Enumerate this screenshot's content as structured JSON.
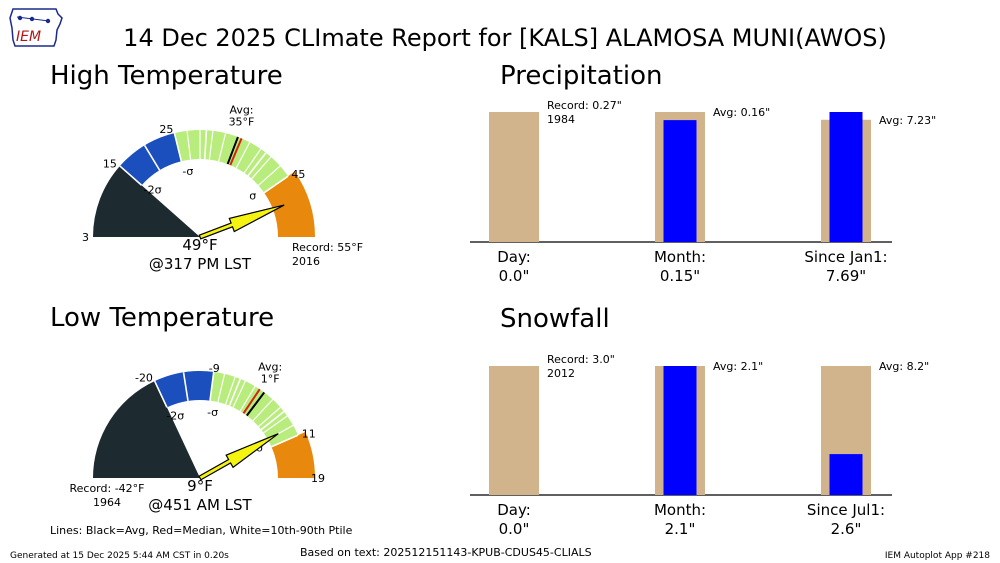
{
  "title": "14 Dec 2025 CLImate Report for [KALS] ALAMOSA MUNI(AWOS)",
  "logo_text": "IEM",
  "colors": {
    "cold": "#1d2a30",
    "blue": "#1b4fbd",
    "green": "#b8ec7c",
    "orange": "#e8890e",
    "arrow": "#f4f410",
    "avg_line": "#000000",
    "median_line": "#d62014",
    "tan": "#d2b48c",
    "obs_blue": "#0000ff"
  },
  "high_gauge": {
    "title": "High Temperature",
    "range": [
      3,
      55
    ],
    "cold_end": 15,
    "blue_end": 25,
    "green_end": 45,
    "avg_value": 35,
    "median_value": 35.6,
    "percentile_values": [
      27,
      29,
      31,
      33,
      37,
      39,
      41,
      43
    ],
    "ticks": [
      3,
      15,
      25,
      45
    ],
    "avg_label": "Avg:",
    "avg_temp_label": "35°F",
    "minus_2sigma": "-2σ",
    "minus_sigma": "-σ",
    "plus_sigma": "σ",
    "sigma_positions": [
      20,
      30,
      40
    ],
    "observed_value": 49,
    "observed_label": "49°F",
    "observed_time": "@317 PM LST",
    "record_label": "Record: 55°F",
    "record_year": "2016",
    "record_side": "high"
  },
  "low_gauge": {
    "title": "Low Temperature",
    "range": [
      -42,
      19
    ],
    "cold_end": -20,
    "blue_end": -9,
    "green_end": 11,
    "avg_value": 1,
    "median_value": 0,
    "percentile_values": [
      -7,
      -5,
      -3,
      -1,
      3,
      5,
      7,
      9
    ],
    "ticks": [
      -20,
      -9,
      11,
      19
    ],
    "avg_label": "Avg:",
    "avg_temp_label": "1°F",
    "minus_2sigma": "-2σ",
    "minus_sigma": "-σ",
    "plus_sigma": "σ",
    "sigma_positions": [
      -14.5,
      -4,
      6
    ],
    "observed_value": 9,
    "observed_label": "9°F",
    "observed_time": "@451 AM LST",
    "record_label": "Record: -42°F",
    "record_year": "1964",
    "record_side": "low"
  },
  "chart_data": [
    {
      "type": "bar",
      "title": "Precipitation",
      "categories": [
        "Day:",
        "Month:",
        "Since Jan1:"
      ],
      "series": [
        {
          "name": "Record / Avg",
          "values": [
            0.27,
            0.16,
            7.23
          ]
        },
        {
          "name": "Observed",
          "values": [
            0.0,
            0.15,
            7.69
          ]
        }
      ],
      "value_labels": [
        "0.0\"",
        "0.15\"",
        "7.69\""
      ],
      "annotations": [
        {
          "text": "Record: 0.27\"",
          "sub": "1984"
        },
        {
          "text": "Avg: 0.16\""
        },
        {
          "text": "Avg: 7.23\""
        }
      ]
    },
    {
      "type": "bar",
      "title": "Snowfall",
      "categories": [
        "Day:",
        "Month:",
        "Since Jul1:"
      ],
      "series": [
        {
          "name": "Record / Avg",
          "values": [
            3.0,
            2.1,
            8.2
          ]
        },
        {
          "name": "Observed",
          "values": [
            0.0,
            2.1,
            2.6
          ]
        }
      ],
      "value_labels": [
        "0.0\"",
        "2.1\"",
        "2.6\""
      ],
      "annotations": [
        {
          "text": "Record: 3.0\"",
          "sub": "2012"
        },
        {
          "text": "Avg: 2.1\""
        },
        {
          "text": "Avg: 8.2\""
        }
      ]
    }
  ],
  "legend_text": "Lines: Black=Avg, Red=Median, White=10th-90th Ptile",
  "footer": {
    "generated": "Generated at 15 Dec 2025 5:44 AM CST in 0.20s",
    "based_on": "Based on text: 202512151143-KPUB-CDUS45-CLIALS",
    "app": "IEM Autoplot App #218"
  }
}
